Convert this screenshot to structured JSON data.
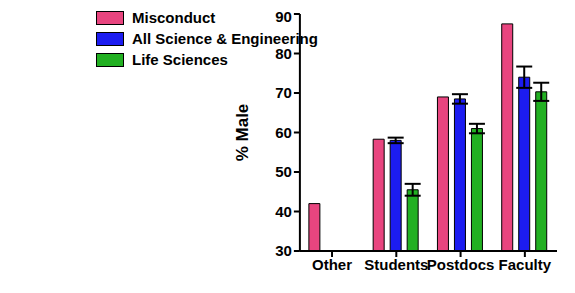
{
  "chart_data": {
    "type": "bar",
    "categories": [
      "Other",
      "Students",
      "Postdocs",
      "Faculty"
    ],
    "y_label": "% Male",
    "ylim": [
      30,
      90
    ],
    "yticks": [
      30,
      40,
      50,
      60,
      70,
      80,
      90
    ],
    "grid": false,
    "legend": "top-left",
    "series": [
      {
        "name": "Misconduct",
        "color": "#e8457f",
        "values": [
          42,
          58.3,
          69,
          87.5
        ]
      },
      {
        "name": "All Science & Engineering",
        "color": "#1c1cf0",
        "values": [
          null,
          58,
          68.5,
          74
        ],
        "errors": [
          null,
          0.7,
          1.2,
          2.7
        ]
      },
      {
        "name": "Life Sciences",
        "color": "#22b022",
        "values": [
          null,
          45.5,
          61,
          70.3
        ],
        "errors": [
          null,
          1.5,
          1.2,
          2.3
        ]
      }
    ]
  }
}
